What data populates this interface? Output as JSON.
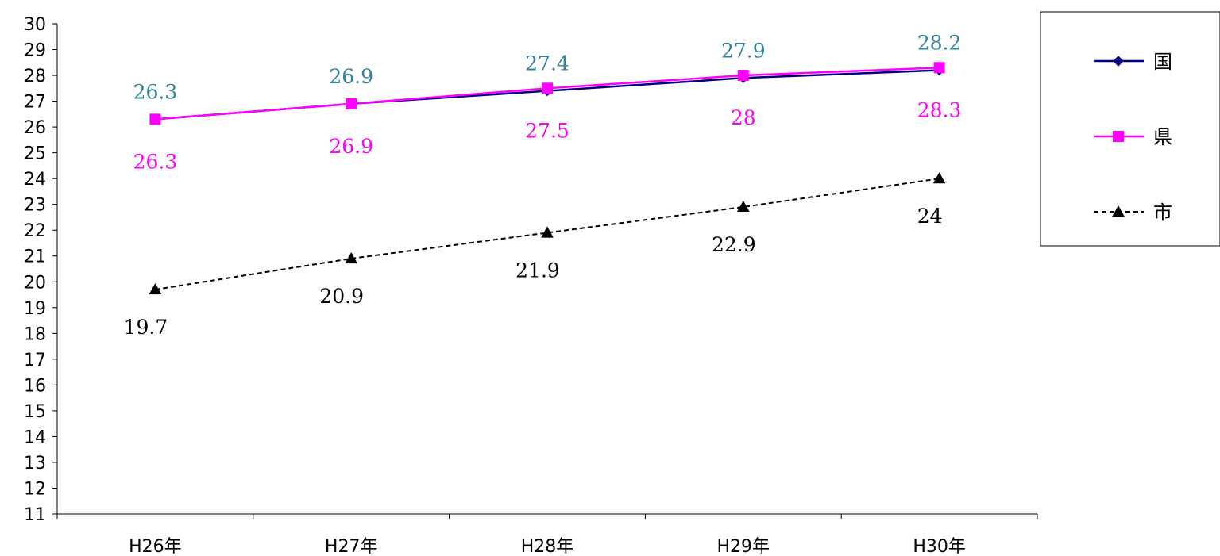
{
  "chart_data": {
    "type": "line",
    "categories": [
      "H26年",
      "H27年",
      "H28年",
      "H29年",
      "H30年"
    ],
    "ylim": [
      11,
      30
    ],
    "y_ticks": [
      11,
      12,
      13,
      14,
      15,
      16,
      17,
      18,
      19,
      20,
      21,
      22,
      23,
      24,
      25,
      26,
      27,
      28,
      29,
      30
    ],
    "grid": false,
    "legend_position": "right",
    "series": [
      {
        "name": "国",
        "values": [
          26.3,
          26.9,
          27.4,
          27.9,
          28.2
        ],
        "value_labels": [
          "26.3",
          "26.9",
          "27.4",
          "27.9",
          "28.2"
        ],
        "color": "#000080",
        "label_color": "#31849B",
        "marker": "diamond-icon",
        "line_style": "solid"
      },
      {
        "name": "県",
        "values": [
          26.3,
          26.9,
          27.5,
          28.0,
          28.3
        ],
        "value_labels": [
          "26.3",
          "26.9",
          "27.5",
          "28",
          "28.3"
        ],
        "color": "#FF00FF",
        "label_color": "#FF00FF",
        "marker": "square-icon",
        "line_style": "solid"
      },
      {
        "name": "市",
        "values": [
          19.7,
          20.9,
          21.9,
          22.9,
          24.0
        ],
        "value_labels": [
          "19.7",
          "20.9",
          "21.9",
          "22.9",
          "24"
        ],
        "color": "#000000",
        "label_color": "#000000",
        "marker": "triangle-icon",
        "line_style": "dashed"
      }
    ]
  }
}
